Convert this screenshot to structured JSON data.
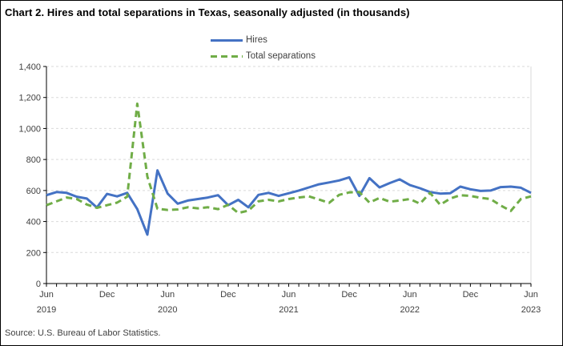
{
  "title": "Chart 2. Hires and total separations in Texas, seasonally adjusted (in thousands)",
  "source": "Source: U.S. Bureau of Labor Statistics.",
  "legend": [
    {
      "label": "Hires",
      "color": "#4472C4",
      "style": "solid"
    },
    {
      "label": "Total separations",
      "color": "#70AD47",
      "style": "dashed"
    }
  ],
  "chart_data": {
    "type": "line",
    "title": "Chart 2. Hires and total separations in Texas, seasonally adjusted (in thousands)",
    "xlabel": "",
    "ylabel": "",
    "ylim": [
      0,
      1400
    ],
    "ytick_step": 200,
    "ytick_labels": [
      "0",
      "200",
      "400",
      "600",
      "800",
      "1,000",
      "1,200",
      "1,400"
    ],
    "grid": "horizontal-dashed",
    "legend_position": "top-center",
    "x": [
      "Jun 2019",
      "Jul 2019",
      "Aug 2019",
      "Sep 2019",
      "Oct 2019",
      "Nov 2019",
      "Dec 2019",
      "Jan 2020",
      "Feb 2020",
      "Mar 2020",
      "Apr 2020",
      "May 2020",
      "Jun 2020",
      "Jul 2020",
      "Aug 2020",
      "Sep 2020",
      "Oct 2020",
      "Nov 2020",
      "Dec 2020",
      "Jan 2021",
      "Feb 2021",
      "Mar 2021",
      "Apr 2021",
      "May 2021",
      "Jun 2021",
      "Jul 2021",
      "Aug 2021",
      "Sep 2021",
      "Oct 2021",
      "Nov 2021",
      "Dec 2021",
      "Jan 2022",
      "Feb 2022",
      "Mar 2022",
      "Apr 2022",
      "May 2022",
      "Jun 2022",
      "Jul 2022",
      "Aug 2022",
      "Sep 2022",
      "Oct 2022",
      "Nov 2022",
      "Dec 2022",
      "Jan 2023",
      "Feb 2023",
      "Mar 2023",
      "Apr 2023",
      "May 2023",
      "Jun 2023"
    ],
    "series": [
      {
        "name": "Hires",
        "color": "#4472C4",
        "style": "solid",
        "values": [
          570,
          590,
          585,
          560,
          548,
          490,
          578,
          562,
          585,
          480,
          315,
          730,
          580,
          515,
          535,
          545,
          555,
          570,
          505,
          540,
          492,
          572,
          585,
          565,
          582,
          600,
          620,
          640,
          652,
          665,
          685,
          565,
          680,
          620,
          648,
          672,
          635,
          615,
          590,
          580,
          582,
          625,
          608,
          597,
          600,
          622,
          625,
          618,
          585
        ]
      },
      {
        "name": "Total separations",
        "color": "#70AD47",
        "style": "dashed",
        "values": [
          505,
          530,
          555,
          545,
          510,
          488,
          505,
          522,
          560,
          1160,
          690,
          482,
          475,
          478,
          492,
          485,
          492,
          480,
          508,
          455,
          470,
          530,
          540,
          530,
          545,
          555,
          562,
          542,
          520,
          572,
          588,
          590,
          522,
          552,
          528,
          535,
          545,
          515,
          585,
          508,
          548,
          570,
          565,
          553,
          545,
          503,
          468,
          545,
          562
        ]
      }
    ],
    "xticks_major": [
      {
        "index": 0,
        "month": "Jun",
        "year": "2019"
      },
      {
        "index": 6,
        "month": "Dec",
        "year": ""
      },
      {
        "index": 12,
        "month": "Jun",
        "year": "2020"
      },
      {
        "index": 18,
        "month": "Dec",
        "year": ""
      },
      {
        "index": 24,
        "month": "Jun",
        "year": "2021"
      },
      {
        "index": 30,
        "month": "Dec",
        "year": ""
      },
      {
        "index": 36,
        "month": "Jun",
        "year": "2022"
      },
      {
        "index": 42,
        "month": "Dec",
        "year": ""
      },
      {
        "index": 48,
        "month": "Jun",
        "year": "2023"
      }
    ]
  }
}
